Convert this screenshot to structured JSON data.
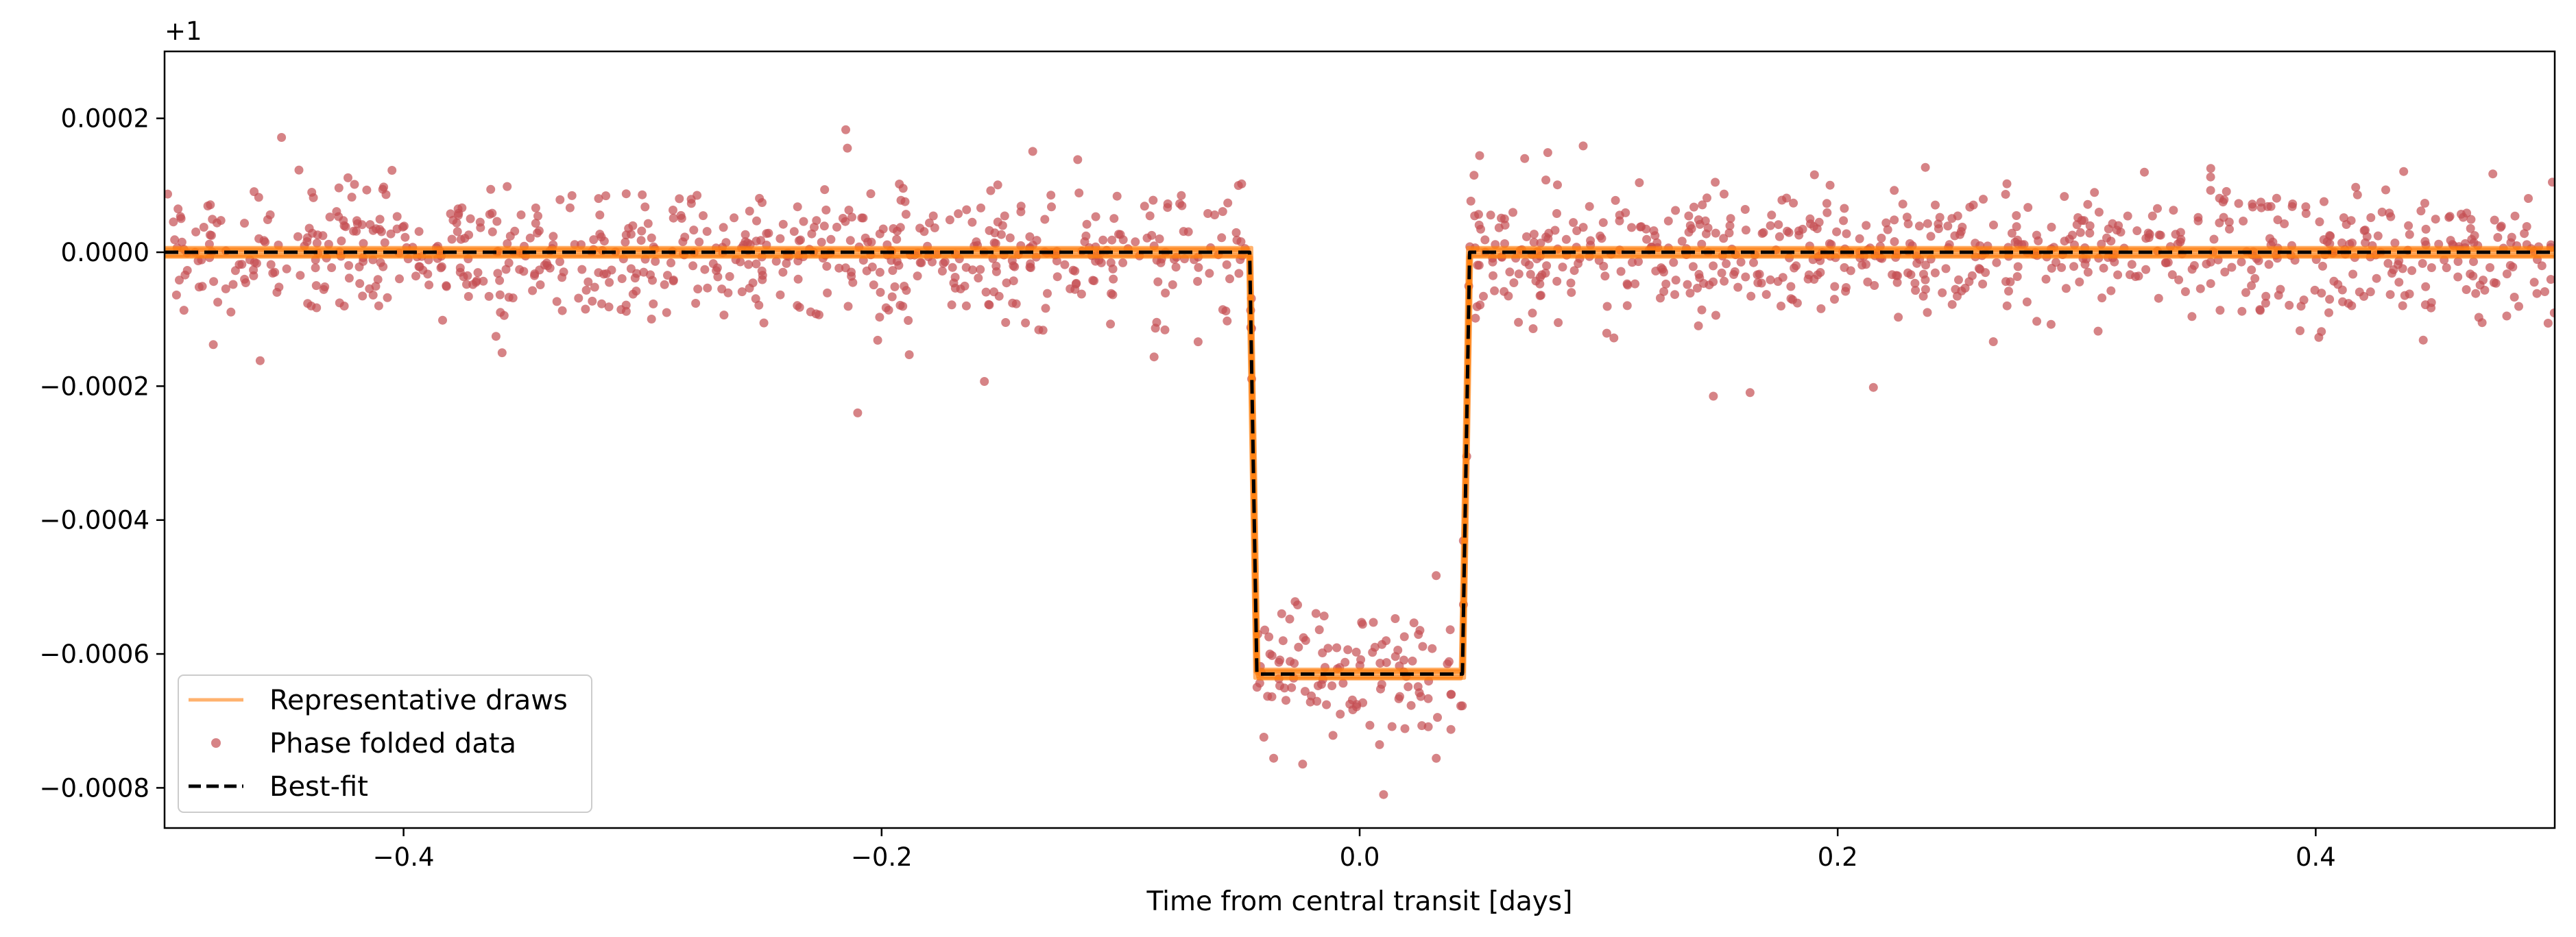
{
  "chart_data": {
    "type": "scatter",
    "title": "",
    "xlabel": "Time from central transit [days]",
    "ylabel": "",
    "y_offset_label": "+1",
    "xlim": [
      -0.5,
      0.5
    ],
    "ylim": [
      -0.00086,
      0.0003
    ],
    "x_ticks": [
      -0.4,
      -0.2,
      0.0,
      0.2,
      0.4
    ],
    "x_tick_labels": [
      "−0.4",
      "−0.2",
      "0.0",
      "0.2",
      "0.4"
    ],
    "y_ticks": [
      0.0002,
      0.0,
      -0.0002,
      -0.0004,
      -0.0006,
      -0.0008
    ],
    "y_tick_labels": [
      "0.0002",
      "0.0000",
      "−0.0002",
      "−0.0004",
      "−0.0006",
      "−0.0008"
    ],
    "grid": false,
    "legend_position": "lower-left",
    "transit_model": {
      "baseline": 0.0,
      "depth": -0.00063,
      "ingress_start": -0.046,
      "ingress_end": -0.043,
      "egress_start": 0.043,
      "egress_end": 0.046
    },
    "scatter_summary": {
      "n_points": 1500,
      "out_of_transit_mean": 0.0,
      "out_of_transit_scatter": 5e-05,
      "in_transit_mean": -0.00063,
      "in_transit_scatter": 5e-05
    },
    "notable_points": [
      {
        "x": -0.21,
        "y": -0.00024
      },
      {
        "x": 0.148,
        "y": -0.000215
      },
      {
        "x": -0.46,
        "y": -0.000162
      },
      {
        "x": 0.01,
        "y": -0.00081
      },
      {
        "x": -0.215,
        "y": 0.000183
      },
      {
        "x": 0.032,
        "y": -0.000483
      }
    ],
    "series": [
      {
        "name": "Representative draws",
        "kind": "line",
        "color": "#ff7f0e",
        "alpha": 0.6
      },
      {
        "name": "Phase folded data",
        "kind": "scatter",
        "color": "#c44e52",
        "alpha": 0.7
      },
      {
        "name": "Best-fit",
        "kind": "dashed-line",
        "color": "#000000"
      }
    ]
  }
}
